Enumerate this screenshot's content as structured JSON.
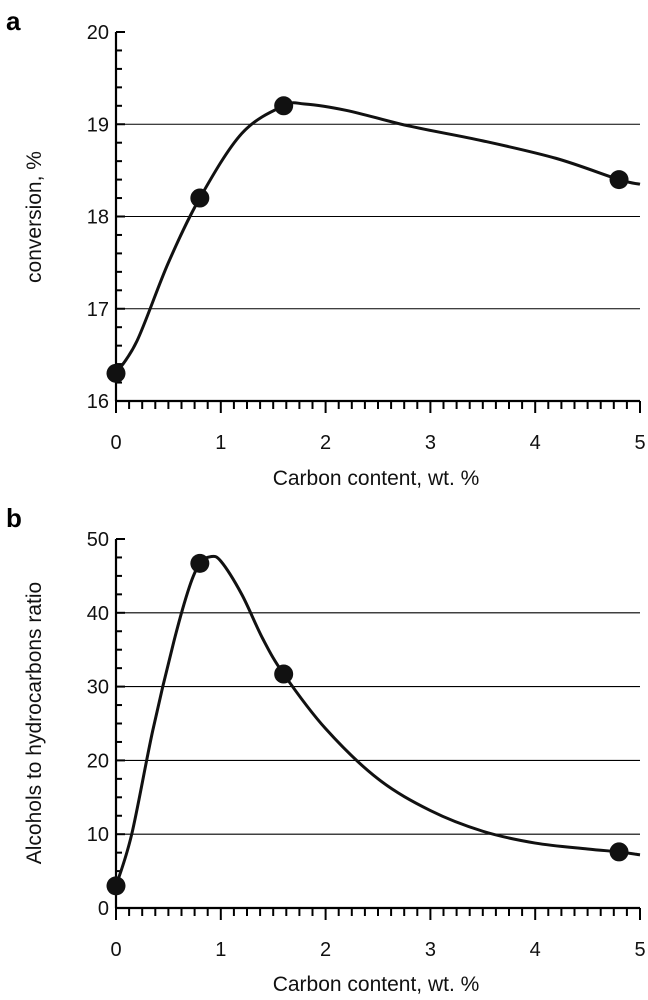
{
  "chart_data": [
    {
      "type": "line",
      "panel": "a",
      "title": "",
      "xlabel": "Carbon content, wt. %",
      "ylabel": "conversion, %",
      "xlim": [
        0,
        5
      ],
      "ylim": [
        16,
        20
      ],
      "xticks": [
        0,
        1,
        2,
        3,
        4,
        5
      ],
      "yticks": [
        16,
        17,
        18,
        19,
        20
      ],
      "x_minor_step": 0.125,
      "y_minor_step": 0.2,
      "grid_y": [
        17,
        18,
        19
      ],
      "series": [
        {
          "name": "conversion",
          "points": [
            {
              "x": 0,
              "y": 16.3
            },
            {
              "x": 0.8,
              "y": 18.2
            },
            {
              "x": 1.6,
              "y": 19.2
            },
            {
              "x": 4.8,
              "y": 18.4
            }
          ],
          "curve": [
            {
              "x": 0,
              "y": 16.3
            },
            {
              "x": 0.2,
              "y": 16.65
            },
            {
              "x": 0.5,
              "y": 17.5
            },
            {
              "x": 0.8,
              "y": 18.2
            },
            {
              "x": 1.2,
              "y": 18.9
            },
            {
              "x": 1.6,
              "y": 19.2
            },
            {
              "x": 1.8,
              "y": 19.22
            },
            {
              "x": 2.2,
              "y": 19.15
            },
            {
              "x": 2.8,
              "y": 18.98
            },
            {
              "x": 3.5,
              "y": 18.82
            },
            {
              "x": 4.2,
              "y": 18.63
            },
            {
              "x": 4.8,
              "y": 18.4
            },
            {
              "x": 5.0,
              "y": 18.35
            }
          ]
        }
      ]
    },
    {
      "type": "line",
      "panel": "b",
      "title": "",
      "xlabel": "Carbon content, wt. %",
      "ylabel": "Alcohols to hydrocarbons ratio",
      "xlim": [
        0,
        5
      ],
      "ylim": [
        0,
        50
      ],
      "xticks": [
        0,
        1,
        2,
        3,
        4,
        5
      ],
      "yticks": [
        0,
        10,
        20,
        30,
        40,
        50
      ],
      "x_minor_step": 0.125,
      "y_minor_step": 2.5,
      "grid_y": [
        10,
        20,
        30,
        40
      ],
      "series": [
        {
          "name": "ratio",
          "points": [
            {
              "x": 0,
              "y": 3
            },
            {
              "x": 0.8,
              "y": 46.7
            },
            {
              "x": 1.6,
              "y": 31.7
            },
            {
              "x": 4.8,
              "y": 7.6
            }
          ],
          "curve": [
            {
              "x": 0,
              "y": 3
            },
            {
              "x": 0.15,
              "y": 10
            },
            {
              "x": 0.35,
              "y": 24
            },
            {
              "x": 0.55,
              "y": 36
            },
            {
              "x": 0.7,
              "y": 43.5
            },
            {
              "x": 0.8,
              "y": 46.7
            },
            {
              "x": 0.9,
              "y": 47.6
            },
            {
              "x": 1.0,
              "y": 47.0
            },
            {
              "x": 1.2,
              "y": 42.5
            },
            {
              "x": 1.4,
              "y": 36.5
            },
            {
              "x": 1.6,
              "y": 31.7
            },
            {
              "x": 2.0,
              "y": 24.3
            },
            {
              "x": 2.5,
              "y": 17.5
            },
            {
              "x": 3.0,
              "y": 13.2
            },
            {
              "x": 3.5,
              "y": 10.4
            },
            {
              "x": 4.0,
              "y": 8.8
            },
            {
              "x": 4.5,
              "y": 8.0
            },
            {
              "x": 4.8,
              "y": 7.6
            },
            {
              "x": 5.0,
              "y": 7.2
            }
          ]
        }
      ]
    }
  ]
}
